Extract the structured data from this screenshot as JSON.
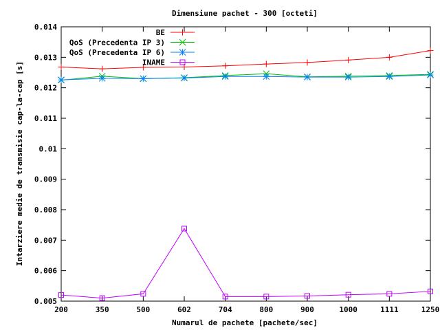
{
  "chart_data": {
    "type": "line",
    "title": "Dimensiune pachet - 300 [octeti]",
    "xlabel": "Numarul de pachete [pachete/sec]",
    "ylabel": "Intarziere medie de transmisie cap-la-cap [s]",
    "categories": [
      "200",
      "350",
      "500",
      "602",
      "704",
      "800",
      "900",
      "1000",
      "1111",
      "1250"
    ],
    "ylim": [
      0.005,
      0.014
    ],
    "yticks": [
      "0.005",
      "0.006",
      "0.007",
      "0.008",
      "0.009",
      "0.01",
      "0.011",
      "0.012",
      "0.013",
      "0.014"
    ],
    "legend_position": "top-right",
    "grid": false,
    "series": [
      {
        "name": "BE",
        "color": "#ff0000",
        "marker": "plus",
        "values": [
          0.01268,
          0.01262,
          0.01267,
          0.01268,
          0.01272,
          0.01278,
          0.01283,
          0.01291,
          0.013,
          0.01322
        ]
      },
      {
        "name": "QoS (Precedenta IP 3)",
        "color": "#00c000",
        "marker": "cross",
        "values": [
          0.01225,
          0.01238,
          0.0123,
          0.01233,
          0.0124,
          0.01246,
          0.01236,
          0.01238,
          0.0124,
          0.01244
        ]
      },
      {
        "name": "QoS (Precedenta IP 6)",
        "color": "#0080ff",
        "marker": "star",
        "values": [
          0.01226,
          0.01231,
          0.0123,
          0.01232,
          0.01237,
          0.01237,
          0.01235,
          0.01235,
          0.01237,
          0.01242
        ]
      },
      {
        "name": "INAME",
        "color": "#c000ff",
        "marker": "square",
        "values": [
          0.0052,
          0.0051,
          0.00524,
          0.00738,
          0.00515,
          0.00515,
          0.00517,
          0.00521,
          0.00524,
          0.00532
        ]
      }
    ]
  }
}
